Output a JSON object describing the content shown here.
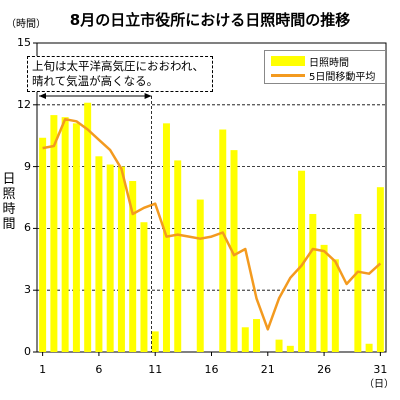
{
  "title": "8月の日立市役所における日照時間の推移",
  "unit_top": "（時間）",
  "unit_bottom": "（日）",
  "ylabel": "日照時間",
  "annotation": "上旬は太平洋高気圧におおわれ、晴れて気温が高くなる。",
  "colors": {
    "bar": "#ffff00",
    "line": "#f39a1f",
    "axis": "#000000",
    "grid": "#000000"
  },
  "chart_data": {
    "type": "bar",
    "ylabel": "日照時間",
    "ylim": [
      0,
      15
    ],
    "yticks": [
      "0",
      "3",
      "6",
      "9",
      "12",
      "15"
    ],
    "xticks": [
      "1",
      "6",
      "11",
      "16",
      "21",
      "26",
      "31"
    ],
    "grid": true,
    "legend_position": "top-right",
    "categories": [
      1,
      2,
      3,
      4,
      5,
      6,
      7,
      8,
      9,
      10,
      11,
      12,
      13,
      14,
      15,
      16,
      17,
      18,
      19,
      20,
      21,
      22,
      23,
      24,
      25,
      26,
      27,
      28,
      29,
      30,
      31
    ],
    "series": [
      {
        "name": "日照時間",
        "type": "bar",
        "values": [
          10.4,
          11.5,
          11.4,
          11.1,
          12.1,
          9.5,
          9.1,
          9.0,
          8.3,
          6.3,
          1.0,
          11.1,
          9.3,
          0.0,
          7.4,
          0.0,
          10.8,
          9.8,
          1.2,
          1.6,
          0.0,
          0.6,
          0.3,
          8.8,
          6.7,
          5.2,
          4.5,
          0.0,
          6.7,
          0.4,
          8.0
        ]
      },
      {
        "name": "5日間移動平均",
        "type": "line",
        "values": [
          9.9,
          10.0,
          11.3,
          11.2,
          10.8,
          10.3,
          9.8,
          8.9,
          6.7,
          7.0,
          7.2,
          5.6,
          5.7,
          5.6,
          5.5,
          5.6,
          5.8,
          4.7,
          5.0,
          2.6,
          1.1,
          2.6,
          3.6,
          4.2,
          5.0,
          4.9,
          4.4,
          3.3,
          3.9,
          3.8,
          4.3
        ]
      }
    ],
    "bracket": {
      "from_day": 1,
      "to_day": 10
    }
  }
}
